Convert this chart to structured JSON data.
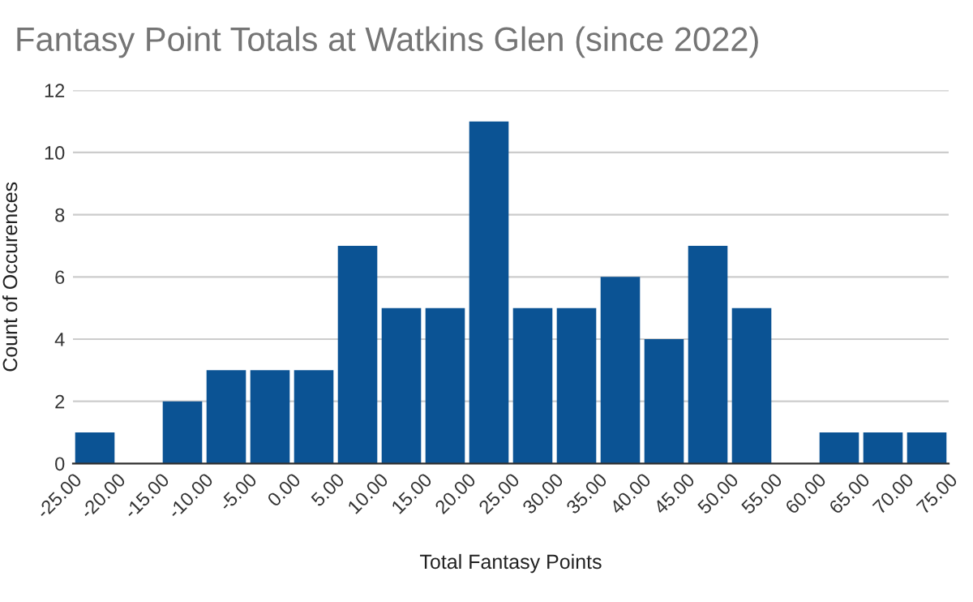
{
  "chart_data": {
    "type": "histogram",
    "title": "Fantasy Point Totals at Watkins Glen (since 2022)",
    "xlabel": "Total Fantasy Points",
    "ylabel": "Count of Occurences",
    "bins": [
      -25,
      -20,
      -15,
      -10,
      -5,
      0,
      5,
      10,
      15,
      20,
      25,
      30,
      35,
      40,
      45,
      50,
      55,
      60,
      65,
      70,
      75
    ],
    "values": [
      1,
      0,
      2,
      3,
      3,
      3,
      7,
      5,
      5,
      11,
      5,
      5,
      6,
      4,
      7,
      5,
      0,
      1,
      1,
      1
    ],
    "color": "#0b5394",
    "xlim": [
      -25,
      75
    ],
    "xticks": [
      {
        "value": -25,
        "label": "-25.00"
      },
      {
        "value": -20,
        "label": "-20.00"
      },
      {
        "value": -15,
        "label": "-15.00"
      },
      {
        "value": -10,
        "label": "-10.00"
      },
      {
        "value": -5,
        "label": "-5.00"
      },
      {
        "value": 0,
        "label": "0.00"
      },
      {
        "value": 5,
        "label": "5.00"
      },
      {
        "value": 10,
        "label": "10.00"
      },
      {
        "value": 15,
        "label": "15.00"
      },
      {
        "value": 20,
        "label": "20.00"
      },
      {
        "value": 25,
        "label": "25.00"
      },
      {
        "value": 30,
        "label": "30.00"
      },
      {
        "value": 35,
        "label": "35.00"
      },
      {
        "value": 40,
        "label": "40.00"
      },
      {
        "value": 45,
        "label": "45.00"
      },
      {
        "value": 50,
        "label": "50.00"
      },
      {
        "value": 55,
        "label": "55.00"
      },
      {
        "value": 60,
        "label": "60.00"
      },
      {
        "value": 65,
        "label": "65.00"
      },
      {
        "value": 70,
        "label": "70.00"
      },
      {
        "value": 75,
        "label": "75.00"
      }
    ],
    "ylim": [
      0,
      12
    ],
    "yticks": [
      0,
      2,
      4,
      6,
      8,
      10,
      12
    ],
    "grid": "y"
  }
}
